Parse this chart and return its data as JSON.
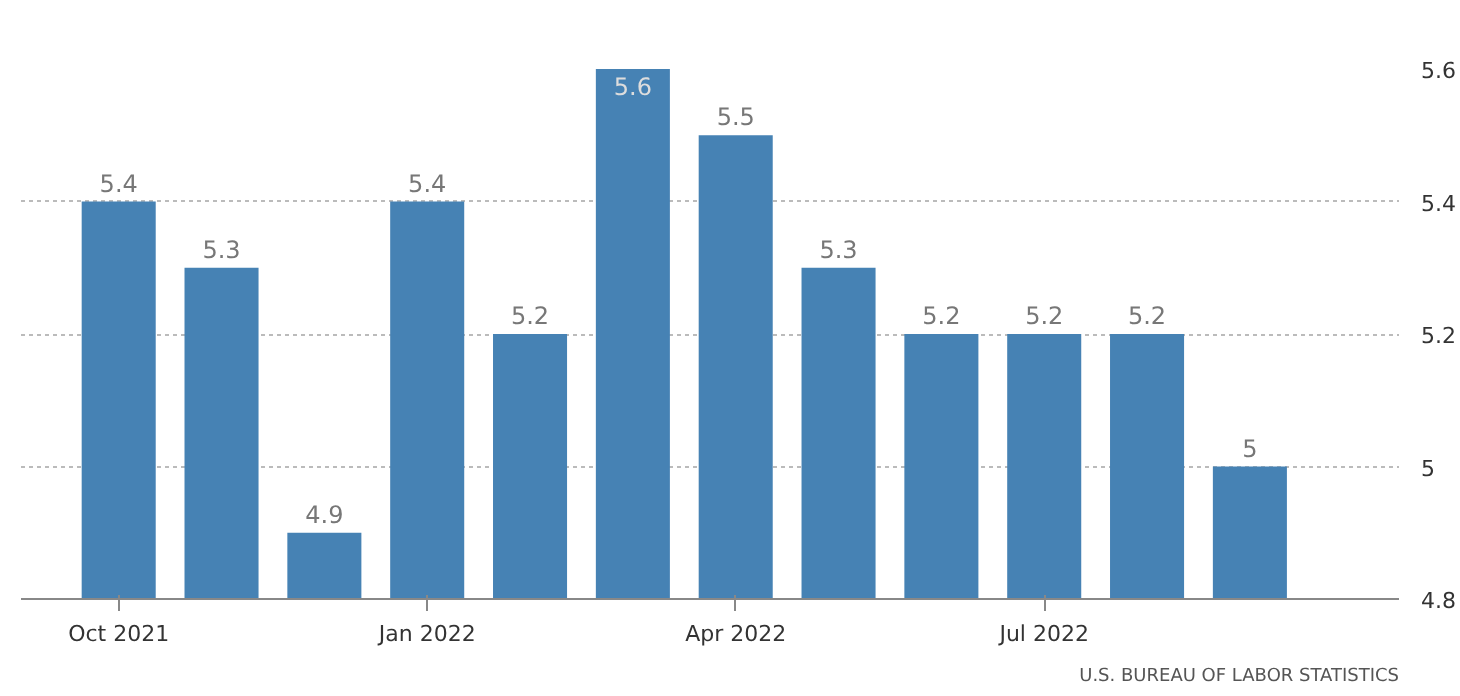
{
  "chart_data": {
    "type": "bar",
    "categories": [
      "Oct 2021",
      null,
      null,
      "Jan 2022",
      null,
      null,
      "Apr 2022",
      null,
      null,
      "Jul 2022",
      null,
      null
    ],
    "values": [
      5.4,
      5.3,
      4.9,
      5.4,
      5.2,
      5.6,
      5.5,
      5.3,
      5.2,
      5.2,
      5.2,
      5
    ],
    "color": "#4682b4",
    "ylim": [
      4.8,
      5.6
    ],
    "yticks": [
      4.8,
      5,
      5.2,
      5.4,
      5.6
    ],
    "grid": "y",
    "data_labels": true,
    "annotations": [
      "U.S. BUREAU OF LABOR STATISTICS"
    ]
  }
}
